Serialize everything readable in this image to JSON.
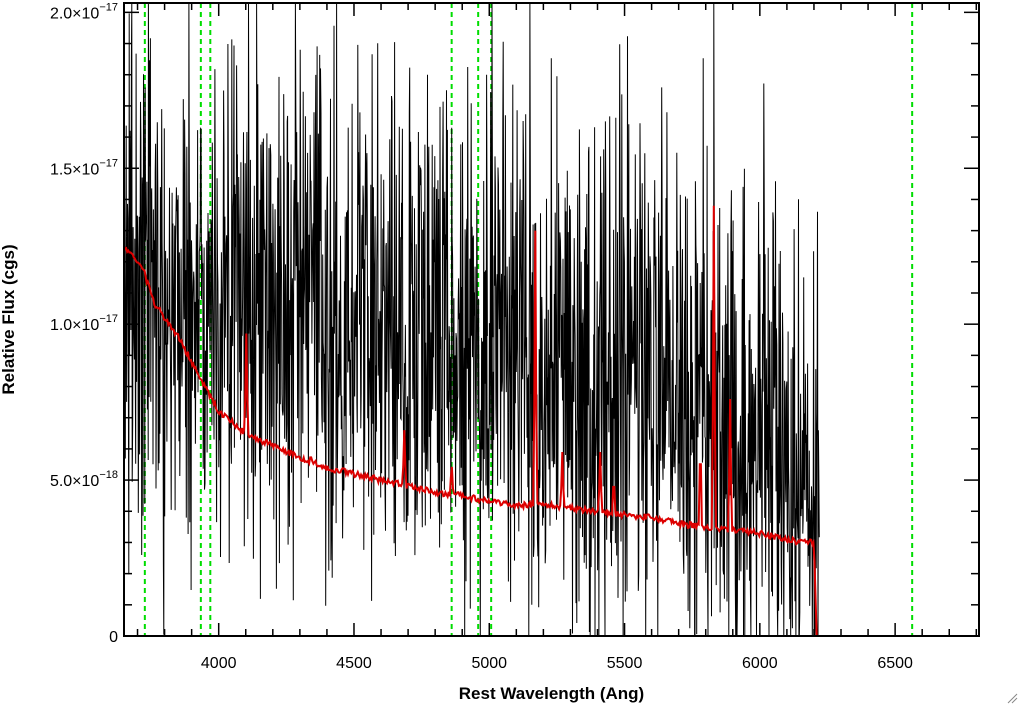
{
  "chart_data": {
    "type": "line",
    "title": "",
    "xlabel": "Rest Wavelength (Ang)",
    "ylabel": "Relative Flux (cgs)",
    "xlim": [
      3650,
      6810
    ],
    "ylim": [
      0,
      2.03e-17
    ],
    "x_ticks": [
      {
        "value": 4000,
        "label": "4000"
      },
      {
        "value": 4500,
        "label": "4500"
      },
      {
        "value": 5000,
        "label": "5000"
      },
      {
        "value": 5500,
        "label": "5500"
      },
      {
        "value": 6000,
        "label": "6000"
      },
      {
        "value": 6500,
        "label": "6500"
      }
    ],
    "y_ticks": [
      {
        "value": 0,
        "mantissa": "0",
        "exponent": ""
      },
      {
        "value": 5e-18,
        "mantissa": "5.0×10",
        "exponent": "−18"
      },
      {
        "value": 1e-17,
        "mantissa": "1.0×10",
        "exponent": "−17"
      },
      {
        "value": 1.5e-17,
        "mantissa": "1.5×10",
        "exponent": "−17"
      },
      {
        "value": 2e-17,
        "mantissa": "2.0×10",
        "exponent": "−17"
      }
    ],
    "series": [
      {
        "role": "observed-spectrum",
        "color": "#000000",
        "wavelength_range": [
          3650,
          6220
        ],
        "noise_level": 4.2e-18,
        "x": [
          3650,
          3750,
          3900,
          4100,
          4300,
          4500,
          4700,
          4900,
          5100,
          5300,
          5500,
          5700,
          5850,
          6000,
          6100,
          6200
        ],
        "y": [
          1.15e-17,
          1.1e-17,
          1.08e-17,
          1.07e-17,
          1.05e-17,
          1.03e-17,
          1e-17,
          9.8e-18,
          9.4e-18,
          8.9e-18,
          8.4e-18,
          7.9e-18,
          7.2e-18,
          6.2e-18,
          4.8e-18,
          4e-18
        ],
        "spikes": [
          {
            "x": 3740,
            "y": 2.03e-17
          },
          {
            "x": 4110,
            "y": 2.03e-17
          },
          {
            "x": 4140,
            "y": 2.03e-17
          },
          {
            "x": 4990,
            "y": 1.8e-17
          },
          {
            "x": 5010,
            "y": 2.03e-17
          },
          {
            "x": 5150,
            "y": 2.03e-17
          },
          {
            "x": 5830,
            "y": 2.03e-17
          }
        ]
      },
      {
        "role": "model-fit",
        "color": "#dd0000",
        "x": [
          3650,
          3700,
          3720,
          3730,
          3760,
          3800,
          3850,
          3900,
          4000,
          4100,
          4200,
          4300,
          4400,
          4500,
          4600,
          4700,
          4800,
          4900,
          5000,
          5100,
          5200,
          5300,
          5400,
          5500,
          5600,
          5700,
          5800,
          5900,
          6000,
          6100,
          6150,
          6195,
          6200,
          6210,
          6810
        ],
        "y": [
          1.25e-17,
          1.2e-17,
          1.18e-17,
          1.15e-17,
          1.07e-17,
          1.02e-17,
          9.6e-18,
          8.8e-18,
          7.2e-18,
          6.5e-18,
          6.1e-18,
          5.7e-18,
          5.4e-18,
          5.2e-18,
          5e-18,
          4.8e-18,
          4.6e-18,
          4.5e-18,
          4.3e-18,
          4.2e-18,
          4.2e-18,
          4.1e-18,
          4e-18,
          3.9e-18,
          3.8e-18,
          3.6e-18,
          3.5e-18,
          3.4e-18,
          3.3e-18,
          3.1e-18,
          3e-18,
          3e-18,
          3e-18,
          0,
          0
        ],
        "emission_lines": [
          {
            "x": 4102,
            "peak": 9.7e-18
          },
          {
            "x": 4340,
            "peak": 5.8e-18
          },
          {
            "x": 4686,
            "peak": 6.6e-18
          },
          {
            "x": 4861,
            "peak": 5.6e-18
          },
          {
            "x": 5170,
            "peak": 1.3e-17
          },
          {
            "x": 5270,
            "peak": 5.9e-18
          },
          {
            "x": 5410,
            "peak": 5.9e-18
          },
          {
            "x": 5460,
            "peak": 5.2e-18
          },
          {
            "x": 5780,
            "peak": 6.5e-18
          },
          {
            "x": 5830,
            "peak": 1.38e-17
          },
          {
            "x": 5890,
            "peak": 7.6e-18
          }
        ]
      }
    ],
    "vertical_lines": {
      "color": "#00dd00",
      "style": "dashed",
      "x": [
        3727,
        3934,
        3969,
        4861,
        4959,
        5007,
        6563
      ]
    }
  }
}
